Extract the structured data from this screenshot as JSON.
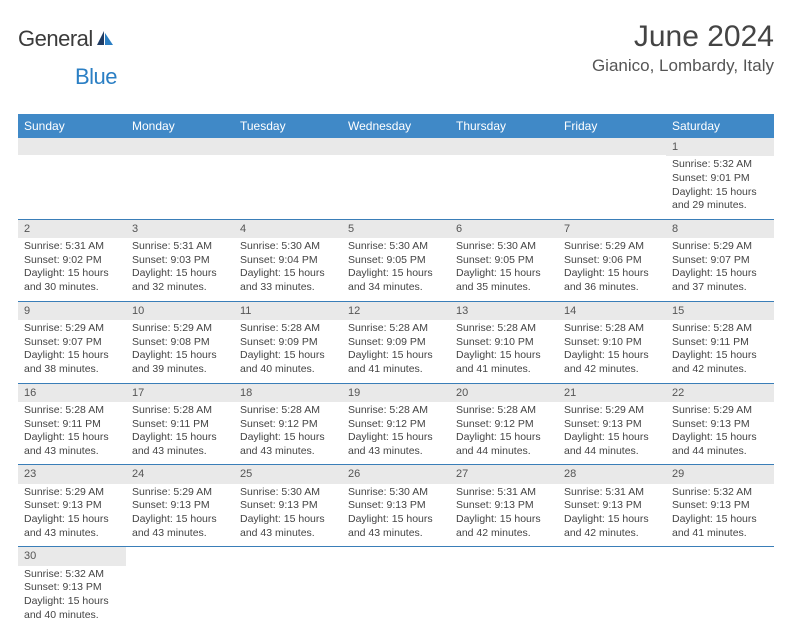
{
  "logo": {
    "word1": "General",
    "word2": "Blue"
  },
  "title": "June 2024",
  "location": "Gianico, Lombardy, Italy",
  "colors": {
    "header_bg": "#4089c7",
    "header_fg": "#ffffff",
    "daybar_bg": "#e9e9e9",
    "cell_border": "#3a7eb8",
    "logo_dark": "#3b3b3b",
    "logo_blue": "#2b7fc4"
  },
  "days_of_week": [
    "Sunday",
    "Monday",
    "Tuesday",
    "Wednesday",
    "Thursday",
    "Friday",
    "Saturday"
  ],
  "weeks": [
    [
      null,
      null,
      null,
      null,
      null,
      null,
      {
        "n": "1",
        "sr": "Sunrise: 5:32 AM",
        "ss": "Sunset: 9:01 PM",
        "dl1": "Daylight: 15 hours",
        "dl2": "and 29 minutes."
      }
    ],
    [
      {
        "n": "2",
        "sr": "Sunrise: 5:31 AM",
        "ss": "Sunset: 9:02 PM",
        "dl1": "Daylight: 15 hours",
        "dl2": "and 30 minutes."
      },
      {
        "n": "3",
        "sr": "Sunrise: 5:31 AM",
        "ss": "Sunset: 9:03 PM",
        "dl1": "Daylight: 15 hours",
        "dl2": "and 32 minutes."
      },
      {
        "n": "4",
        "sr": "Sunrise: 5:30 AM",
        "ss": "Sunset: 9:04 PM",
        "dl1": "Daylight: 15 hours",
        "dl2": "and 33 minutes."
      },
      {
        "n": "5",
        "sr": "Sunrise: 5:30 AM",
        "ss": "Sunset: 9:05 PM",
        "dl1": "Daylight: 15 hours",
        "dl2": "and 34 minutes."
      },
      {
        "n": "6",
        "sr": "Sunrise: 5:30 AM",
        "ss": "Sunset: 9:05 PM",
        "dl1": "Daylight: 15 hours",
        "dl2": "and 35 minutes."
      },
      {
        "n": "7",
        "sr": "Sunrise: 5:29 AM",
        "ss": "Sunset: 9:06 PM",
        "dl1": "Daylight: 15 hours",
        "dl2": "and 36 minutes."
      },
      {
        "n": "8",
        "sr": "Sunrise: 5:29 AM",
        "ss": "Sunset: 9:07 PM",
        "dl1": "Daylight: 15 hours",
        "dl2": "and 37 minutes."
      }
    ],
    [
      {
        "n": "9",
        "sr": "Sunrise: 5:29 AM",
        "ss": "Sunset: 9:07 PM",
        "dl1": "Daylight: 15 hours",
        "dl2": "and 38 minutes."
      },
      {
        "n": "10",
        "sr": "Sunrise: 5:29 AM",
        "ss": "Sunset: 9:08 PM",
        "dl1": "Daylight: 15 hours",
        "dl2": "and 39 minutes."
      },
      {
        "n": "11",
        "sr": "Sunrise: 5:28 AM",
        "ss": "Sunset: 9:09 PM",
        "dl1": "Daylight: 15 hours",
        "dl2": "and 40 minutes."
      },
      {
        "n": "12",
        "sr": "Sunrise: 5:28 AM",
        "ss": "Sunset: 9:09 PM",
        "dl1": "Daylight: 15 hours",
        "dl2": "and 41 minutes."
      },
      {
        "n": "13",
        "sr": "Sunrise: 5:28 AM",
        "ss": "Sunset: 9:10 PM",
        "dl1": "Daylight: 15 hours",
        "dl2": "and 41 minutes."
      },
      {
        "n": "14",
        "sr": "Sunrise: 5:28 AM",
        "ss": "Sunset: 9:10 PM",
        "dl1": "Daylight: 15 hours",
        "dl2": "and 42 minutes."
      },
      {
        "n": "15",
        "sr": "Sunrise: 5:28 AM",
        "ss": "Sunset: 9:11 PM",
        "dl1": "Daylight: 15 hours",
        "dl2": "and 42 minutes."
      }
    ],
    [
      {
        "n": "16",
        "sr": "Sunrise: 5:28 AM",
        "ss": "Sunset: 9:11 PM",
        "dl1": "Daylight: 15 hours",
        "dl2": "and 43 minutes."
      },
      {
        "n": "17",
        "sr": "Sunrise: 5:28 AM",
        "ss": "Sunset: 9:11 PM",
        "dl1": "Daylight: 15 hours",
        "dl2": "and 43 minutes."
      },
      {
        "n": "18",
        "sr": "Sunrise: 5:28 AM",
        "ss": "Sunset: 9:12 PM",
        "dl1": "Daylight: 15 hours",
        "dl2": "and 43 minutes."
      },
      {
        "n": "19",
        "sr": "Sunrise: 5:28 AM",
        "ss": "Sunset: 9:12 PM",
        "dl1": "Daylight: 15 hours",
        "dl2": "and 43 minutes."
      },
      {
        "n": "20",
        "sr": "Sunrise: 5:28 AM",
        "ss": "Sunset: 9:12 PM",
        "dl1": "Daylight: 15 hours",
        "dl2": "and 44 minutes."
      },
      {
        "n": "21",
        "sr": "Sunrise: 5:29 AM",
        "ss": "Sunset: 9:13 PM",
        "dl1": "Daylight: 15 hours",
        "dl2": "and 44 minutes."
      },
      {
        "n": "22",
        "sr": "Sunrise: 5:29 AM",
        "ss": "Sunset: 9:13 PM",
        "dl1": "Daylight: 15 hours",
        "dl2": "and 44 minutes."
      }
    ],
    [
      {
        "n": "23",
        "sr": "Sunrise: 5:29 AM",
        "ss": "Sunset: 9:13 PM",
        "dl1": "Daylight: 15 hours",
        "dl2": "and 43 minutes."
      },
      {
        "n": "24",
        "sr": "Sunrise: 5:29 AM",
        "ss": "Sunset: 9:13 PM",
        "dl1": "Daylight: 15 hours",
        "dl2": "and 43 minutes."
      },
      {
        "n": "25",
        "sr": "Sunrise: 5:30 AM",
        "ss": "Sunset: 9:13 PM",
        "dl1": "Daylight: 15 hours",
        "dl2": "and 43 minutes."
      },
      {
        "n": "26",
        "sr": "Sunrise: 5:30 AM",
        "ss": "Sunset: 9:13 PM",
        "dl1": "Daylight: 15 hours",
        "dl2": "and 43 minutes."
      },
      {
        "n": "27",
        "sr": "Sunrise: 5:31 AM",
        "ss": "Sunset: 9:13 PM",
        "dl1": "Daylight: 15 hours",
        "dl2": "and 42 minutes."
      },
      {
        "n": "28",
        "sr": "Sunrise: 5:31 AM",
        "ss": "Sunset: 9:13 PM",
        "dl1": "Daylight: 15 hours",
        "dl2": "and 42 minutes."
      },
      {
        "n": "29",
        "sr": "Sunrise: 5:32 AM",
        "ss": "Sunset: 9:13 PM",
        "dl1": "Daylight: 15 hours",
        "dl2": "and 41 minutes."
      }
    ],
    [
      {
        "n": "30",
        "sr": "Sunrise: 5:32 AM",
        "ss": "Sunset: 9:13 PM",
        "dl1": "Daylight: 15 hours",
        "dl2": "and 40 minutes."
      },
      null,
      null,
      null,
      null,
      null,
      null
    ]
  ]
}
